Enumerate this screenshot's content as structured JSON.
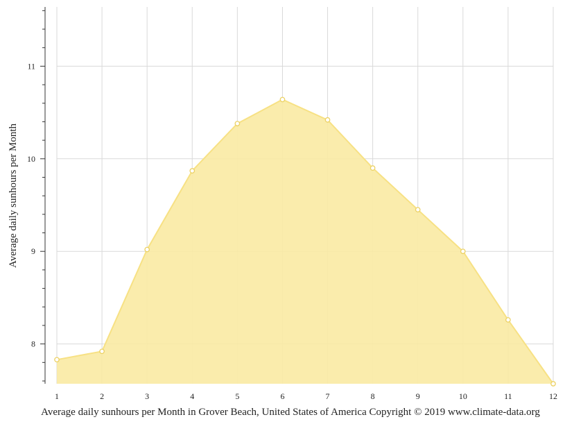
{
  "chart_data": {
    "type": "area",
    "x": [
      1,
      2,
      3,
      4,
      5,
      6,
      7,
      8,
      9,
      10,
      11,
      12
    ],
    "x_tick_labels": [
      "1",
      "2",
      "3",
      "4",
      "5",
      "6",
      "7",
      "8",
      "9",
      "10",
      "11",
      "12"
    ],
    "series": [
      {
        "values": [
          7.83,
          7.92,
          9.02,
          9.87,
          10.38,
          10.64,
          10.42,
          9.9,
          9.45,
          9.0,
          8.26,
          7.57
        ]
      }
    ],
    "ylabel": "Average daily sunhours per Month",
    "xlabel": "Average daily sunhours per Month in Grover Beach, United States of America Copyright © 2019 www.climate-data.org",
    "ylim": [
      7.57,
      11.64
    ],
    "xlim": [
      1,
      12
    ],
    "y_ticks": [
      8,
      9,
      10,
      11
    ],
    "y_tick_labels": [
      "8",
      "9",
      "10",
      "11"
    ],
    "grid": true,
    "colors": {
      "fill": "#f9eaa3",
      "line": "#f7e184",
      "marker_edge": "#ecd163",
      "grid": "#d9d9d9",
      "axis": "#333333"
    }
  }
}
